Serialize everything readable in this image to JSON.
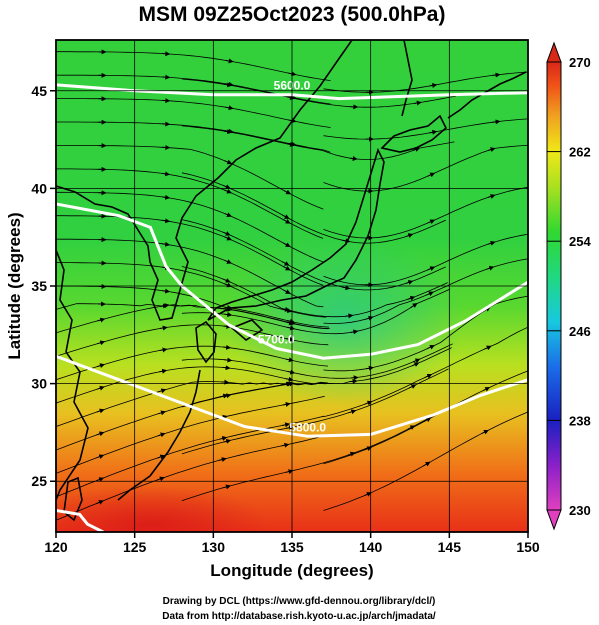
{
  "chart_data": {
    "type": "heatmap",
    "title": "MSM 09Z25Oct2023 (500.0hPa)",
    "xlabel": "Longitude (degrees)",
    "ylabel": "Latitude  (degrees)",
    "xlim": [
      120,
      150
    ],
    "ylim": [
      22.4,
      47.6
    ],
    "xticks": [
      120,
      125,
      130,
      135,
      140,
      145,
      150
    ],
    "yticks": [
      25,
      30,
      35,
      40,
      45
    ],
    "grid": true,
    "colorbar": {
      "min": 230,
      "max": 270,
      "ticks": [
        230,
        238,
        246,
        254,
        262,
        270
      ],
      "colors": [
        "#e040c0",
        "#8a20c8",
        "#1a20c0",
        "#1a6ee8",
        "#18c8e0",
        "#20d880",
        "#30d830",
        "#a8e020",
        "#f0e818",
        "#f0a020",
        "#f05018",
        "#d82818"
      ]
    },
    "field_estimates": [
      {
        "lat": 45,
        "lon": 135,
        "value": 253
      },
      {
        "lat": 40,
        "lon": 125,
        "value": 253
      },
      {
        "lat": 37,
        "lon": 140,
        "value": 251
      },
      {
        "lat": 34,
        "lon": 138,
        "value": 248
      },
      {
        "lat": 30,
        "lon": 125,
        "value": 260
      },
      {
        "lat": 28,
        "lon": 145,
        "value": 259
      },
      {
        "lat": 25,
        "lon": 130,
        "value": 263
      },
      {
        "lat": 23,
        "lon": 126,
        "value": 267
      }
    ],
    "contours": [
      {
        "label": "5600.0",
        "points": [
          [
            120,
            45.3
          ],
          [
            125,
            45.0
          ],
          [
            130,
            44.8
          ],
          [
            135,
            44.8
          ],
          [
            138,
            44.6
          ],
          [
            145,
            44.8
          ],
          [
            150,
            44.9
          ]
        ]
      },
      {
        "label": "5700.0",
        "points": [
          [
            120,
            39.2
          ],
          [
            124,
            38.6
          ],
          [
            126,
            38.0
          ],
          [
            127,
            36.0
          ],
          [
            128,
            35.0
          ],
          [
            131,
            33.0
          ],
          [
            134,
            31.8
          ],
          [
            137,
            31.3
          ],
          [
            140,
            31.5
          ],
          [
            143,
            32.0
          ],
          [
            146,
            33.2
          ],
          [
            150,
            35.2
          ]
        ]
      },
      {
        "label": "5800.0",
        "points": [
          [
            120,
            31.4
          ],
          [
            124,
            30.2
          ],
          [
            128,
            29.0
          ],
          [
            132,
            27.8
          ],
          [
            136,
            27.3
          ],
          [
            140,
            27.4
          ],
          [
            144,
            28.4
          ],
          [
            147,
            29.4
          ],
          [
            150,
            30.2
          ]
        ]
      },
      {
        "label": "",
        "points": [
          [
            120,
            23.5
          ],
          [
            121.5,
            23.3
          ],
          [
            122,
            22.8
          ],
          [
            123,
            22.4
          ]
        ]
      }
    ],
    "wind_flow": "streamlines with arrows; westerly flow with southwesterly component south of 35N and a trough over the Sea of Japan"
  },
  "credits": {
    "line1": "Drawing by DCL (https://www.gfd-dennou.org/library/dcl/)",
    "line2": "Data from http://database.rish.kyoto-u.ac.jp/arch/jmadata/"
  }
}
